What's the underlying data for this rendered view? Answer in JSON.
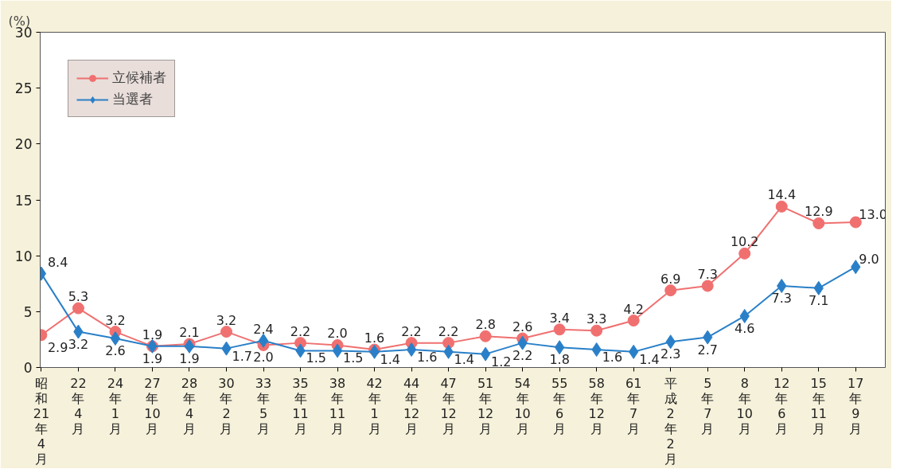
{
  "chart_data": {
    "type": "line",
    "ylabel": "(%)",
    "categories": [
      "昭和21年4月",
      "22年4月",
      "24年1月",
      "27年10月",
      "28年4月",
      "30年2月",
      "33年5月",
      "35年11月",
      "38年11月",
      "42年1月",
      "44年12月",
      "47年12月",
      "51年12月",
      "54年10月",
      "55年6月",
      "58年12月",
      "61年7月",
      "平成2年2月",
      "5年7月",
      "8年10月",
      "12年6月",
      "15年11月",
      "17年9月"
    ],
    "series": [
      {
        "name": "立候補者",
        "color": "#f07070",
        "marker": "circle",
        "values": [
          2.9,
          5.3,
          3.2,
          1.9,
          2.1,
          3.2,
          2.0,
          2.2,
          2.0,
          1.6,
          2.2,
          2.2,
          2.8,
          2.6,
          3.4,
          3.3,
          4.2,
          6.9,
          7.3,
          10.2,
          14.4,
          12.9,
          13.0
        ],
        "value_labels": [
          "2.9",
          "5.3",
          "3.2",
          "1.9",
          "2.1",
          "3.2",
          "2.0",
          "2.2",
          "2.0",
          "1.6",
          "2.2",
          "2.2",
          "2.8",
          "2.6",
          "3.4",
          "3.3",
          "4.2",
          "6.9",
          "7.3",
          "10.2",
          "14.4",
          "12.9",
          "13.0"
        ]
      },
      {
        "name": "当選者",
        "color": "#2a80c8",
        "marker": "diamond",
        "values": [
          8.4,
          3.2,
          2.6,
          1.9,
          1.9,
          1.7,
          2.4,
          1.5,
          1.5,
          1.4,
          1.6,
          1.4,
          1.2,
          2.2,
          1.8,
          1.6,
          1.4,
          2.3,
          2.7,
          4.6,
          7.3,
          7.1,
          9.0
        ],
        "value_labels": [
          "8.4",
          "3.2",
          "2.6",
          "1.9",
          "1.9",
          "1.7",
          "2.4",
          "1.5",
          "1.5",
          "1.4",
          "1.6",
          "1.4",
          "1.2",
          "2.2",
          "1.8",
          "1.6",
          "1.4",
          "2.3",
          "2.7",
          "4.6",
          "7.3",
          "7.1",
          "9.0"
        ]
      }
    ],
    "ylim": [
      0,
      30
    ],
    "yticks": [
      0,
      5,
      10,
      15,
      20,
      25,
      30
    ],
    "grid": false,
    "legend": "top left"
  }
}
